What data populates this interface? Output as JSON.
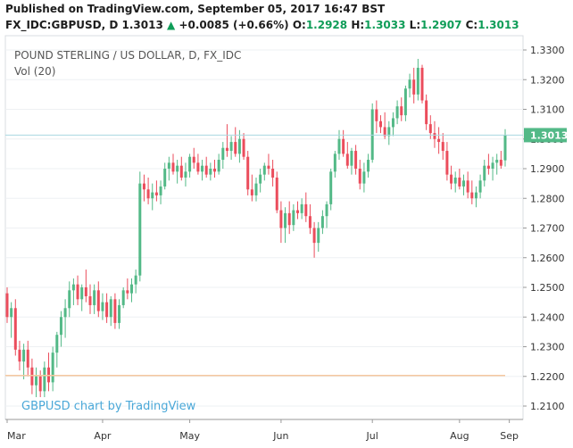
{
  "header": {
    "published": "Published on TradingView.com, September 05, 2017 16:47 BST",
    "symbol": "FX_IDC:GBPUSD, D",
    "last": "1.3013",
    "arrow": "▲",
    "change": "+0.0085 (+0.66%)",
    "o_label": "O:",
    "o_value": "1.2928",
    "h_label": "H:",
    "h_value": "1.3033",
    "l_label": "L:",
    "l_value": "1.2907",
    "c_label": "C:",
    "c_value": "1.3013"
  },
  "legend": {
    "title": "POUND STERLING / US DOLLAR, D, FX_IDC",
    "vol": "Vol (20)"
  },
  "watermark": "GBPUSD chart by TradingView",
  "colors": {
    "up": "#53b987",
    "down": "#eb4d5c",
    "price_tag": "#53b987",
    "price_line": "#a8d8e0",
    "ma_line": "#f5c8a0",
    "grid": "#eef0f3",
    "watermark": "#4aa8d8"
  },
  "chart_data": {
    "type": "candlestick",
    "x_axis": {
      "labels": [
        "Mar",
        "Apr",
        "May",
        "Jun",
        "Jul",
        "Aug",
        "Sep"
      ]
    },
    "y_axis": {
      "ticks": [
        "1.3300",
        "1.3200",
        "1.3100",
        "1.3000",
        "1.2900",
        "1.2800",
        "1.2700",
        "1.2600",
        "1.2500",
        "1.2400",
        "1.2300",
        "1.2200",
        "1.2100"
      ],
      "range": [
        1.205,
        1.335
      ]
    },
    "last_price": "1.3013",
    "volume_ma_level": 1.2203,
    "candles": [
      [
        1.248,
        1.25,
        1.238,
        1.24
      ],
      [
        1.24,
        1.245,
        1.233,
        1.243
      ],
      [
        1.243,
        1.246,
        1.227,
        1.229
      ],
      [
        1.229,
        1.232,
        1.222,
        1.225
      ],
      [
        1.225,
        1.231,
        1.219,
        1.229
      ],
      [
        1.229,
        1.232,
        1.22,
        1.223
      ],
      [
        1.223,
        1.226,
        1.214,
        1.217
      ],
      [
        1.217,
        1.223,
        1.213,
        1.22
      ],
      [
        1.22,
        1.222,
        1.213,
        1.215
      ],
      [
        1.215,
        1.225,
        1.213,
        1.223
      ],
      [
        1.223,
        1.228,
        1.215,
        1.218
      ],
      [
        1.218,
        1.23,
        1.215,
        1.228
      ],
      [
        1.228,
        1.235,
        1.223,
        1.234
      ],
      [
        1.234,
        1.242,
        1.23,
        1.24
      ],
      [
        1.24,
        1.246,
        1.233,
        1.243
      ],
      [
        1.243,
        1.252,
        1.24,
        1.249
      ],
      [
        1.249,
        1.253,
        1.244,
        1.251
      ],
      [
        1.251,
        1.254,
        1.244,
        1.246
      ],
      [
        1.246,
        1.251,
        1.242,
        1.25
      ],
      [
        1.25,
        1.256,
        1.245,
        1.247
      ],
      [
        1.247,
        1.251,
        1.241,
        1.244
      ],
      [
        1.244,
        1.251,
        1.241,
        1.249
      ],
      [
        1.249,
        1.252,
        1.24,
        1.242
      ],
      [
        1.242,
        1.248,
        1.239,
        1.245
      ],
      [
        1.245,
        1.248,
        1.238,
        1.24
      ],
      [
        1.24,
        1.247,
        1.237,
        1.246
      ],
      [
        1.246,
        1.248,
        1.236,
        1.238
      ],
      [
        1.238,
        1.246,
        1.236,
        1.244
      ],
      [
        1.244,
        1.25,
        1.243,
        1.249
      ],
      [
        1.249,
        1.253,
        1.246,
        1.248
      ],
      [
        1.248,
        1.253,
        1.245,
        1.251
      ],
      [
        1.251,
        1.256,
        1.248,
        1.254
      ],
      [
        1.254,
        1.289,
        1.252,
        1.285
      ],
      [
        1.285,
        1.288,
        1.279,
        1.283
      ],
      [
        1.283,
        1.287,
        1.278,
        1.28
      ],
      [
        1.28,
        1.285,
        1.276,
        1.282
      ],
      [
        1.282,
        1.286,
        1.279,
        1.281
      ],
      [
        1.281,
        1.286,
        1.278,
        1.284
      ],
      [
        1.284,
        1.292,
        1.283,
        1.29
      ],
      [
        1.29,
        1.294,
        1.286,
        1.292
      ],
      [
        1.292,
        1.295,
        1.288,
        1.289
      ],
      [
        1.289,
        1.293,
        1.285,
        1.291
      ],
      [
        1.291,
        1.294,
        1.286,
        1.287
      ],
      [
        1.287,
        1.292,
        1.284,
        1.289
      ],
      [
        1.289,
        1.295,
        1.287,
        1.294
      ],
      [
        1.294,
        1.297,
        1.29,
        1.292
      ],
      [
        1.292,
        1.295,
        1.288,
        1.289
      ],
      [
        1.289,
        1.293,
        1.286,
        1.291
      ],
      [
        1.291,
        1.294,
        1.287,
        1.288
      ],
      [
        1.288,
        1.292,
        1.286,
        1.29
      ],
      [
        1.29,
        1.293,
        1.287,
        1.289
      ],
      [
        1.289,
        1.295,
        1.288,
        1.293
      ],
      [
        1.293,
        1.299,
        1.29,
        1.297
      ],
      [
        1.297,
        1.305,
        1.294,
        1.296
      ],
      [
        1.296,
        1.301,
        1.293,
        1.299
      ],
      [
        1.299,
        1.304,
        1.294,
        1.295
      ],
      [
        1.295,
        1.303,
        1.292,
        1.3
      ],
      [
        1.3,
        1.302,
        1.293,
        1.294
      ],
      [
        1.294,
        1.296,
        1.281,
        1.283
      ],
      [
        1.283,
        1.288,
        1.279,
        1.281
      ],
      [
        1.281,
        1.287,
        1.279,
        1.285
      ],
      [
        1.285,
        1.29,
        1.282,
        1.288
      ],
      [
        1.288,
        1.292,
        1.286,
        1.291
      ],
      [
        1.291,
        1.295,
        1.288,
        1.29
      ],
      [
        1.29,
        1.293,
        1.284,
        1.287
      ],
      [
        1.287,
        1.289,
        1.275,
        1.276
      ],
      [
        1.276,
        1.279,
        1.265,
        1.27
      ],
      [
        1.27,
        1.277,
        1.265,
        1.275
      ],
      [
        1.275,
        1.279,
        1.268,
        1.271
      ],
      [
        1.271,
        1.278,
        1.269,
        1.276
      ],
      [
        1.276,
        1.279,
        1.273,
        1.275
      ],
      [
        1.275,
        1.28,
        1.273,
        1.278
      ],
      [
        1.278,
        1.282,
        1.272,
        1.274
      ],
      [
        1.274,
        1.278,
        1.268,
        1.27
      ],
      [
        1.27,
        1.272,
        1.26,
        1.265
      ],
      [
        1.265,
        1.272,
        1.262,
        1.27
      ],
      [
        1.27,
        1.276,
        1.268,
        1.274
      ],
      [
        1.274,
        1.279,
        1.27,
        1.278
      ],
      [
        1.278,
        1.29,
        1.276,
        1.289
      ],
      [
        1.289,
        1.296,
        1.287,
        1.295
      ],
      [
        1.295,
        1.303,
        1.293,
        1.3
      ],
      [
        1.3,
        1.303,
        1.294,
        1.295
      ],
      [
        1.295,
        1.299,
        1.29,
        1.291
      ],
      [
        1.291,
        1.297,
        1.288,
        1.296
      ],
      [
        1.296,
        1.298,
        1.288,
        1.29
      ],
      [
        1.29,
        1.293,
        1.283,
        1.285
      ],
      [
        1.285,
        1.292,
        1.282,
        1.289
      ],
      [
        1.289,
        1.295,
        1.287,
        1.293
      ],
      [
        1.293,
        1.312,
        1.292,
        1.31
      ],
      [
        1.31,
        1.313,
        1.302,
        1.306
      ],
      [
        1.306,
        1.308,
        1.302,
        1.304
      ],
      [
        1.304,
        1.309,
        1.3,
        1.301
      ],
      [
        1.301,
        1.306,
        1.298,
        1.304
      ],
      [
        1.304,
        1.309,
        1.301,
        1.307
      ],
      [
        1.307,
        1.313,
        1.305,
        1.311
      ],
      [
        1.311,
        1.314,
        1.306,
        1.308
      ],
      [
        1.308,
        1.318,
        1.306,
        1.317
      ],
      [
        1.317,
        1.322,
        1.314,
        1.32
      ],
      [
        1.32,
        1.324,
        1.312,
        1.315
      ],
      [
        1.315,
        1.327,
        1.313,
        1.324
      ],
      [
        1.324,
        1.325,
        1.312,
        1.313
      ],
      [
        1.313,
        1.315,
        1.303,
        1.305
      ],
      [
        1.305,
        1.308,
        1.3,
        1.302
      ],
      [
        1.302,
        1.306,
        1.297,
        1.3
      ],
      [
        1.3,
        1.304,
        1.295,
        1.299
      ],
      [
        1.299,
        1.302,
        1.293,
        1.296
      ],
      [
        1.296,
        1.299,
        1.286,
        1.288
      ],
      [
        1.288,
        1.291,
        1.283,
        1.285
      ],
      [
        1.285,
        1.289,
        1.282,
        1.287
      ],
      [
        1.287,
        1.29,
        1.283,
        1.284
      ],
      [
        1.284,
        1.288,
        1.281,
        1.286
      ],
      [
        1.286,
        1.289,
        1.28,
        1.282
      ],
      [
        1.282,
        1.286,
        1.278,
        1.28
      ],
      [
        1.28,
        1.284,
        1.277,
        1.282
      ],
      [
        1.282,
        1.288,
        1.28,
        1.286
      ],
      [
        1.286,
        1.293,
        1.284,
        1.291
      ],
      [
        1.291,
        1.295,
        1.288,
        1.29
      ],
      [
        1.29,
        1.294,
        1.286,
        1.292
      ],
      [
        1.292,
        1.295,
        1.288,
        1.293
      ],
      [
        1.293,
        1.296,
        1.29,
        1.291
      ],
      [
        1.2928,
        1.3033,
        1.2907,
        1.3013
      ]
    ]
  }
}
